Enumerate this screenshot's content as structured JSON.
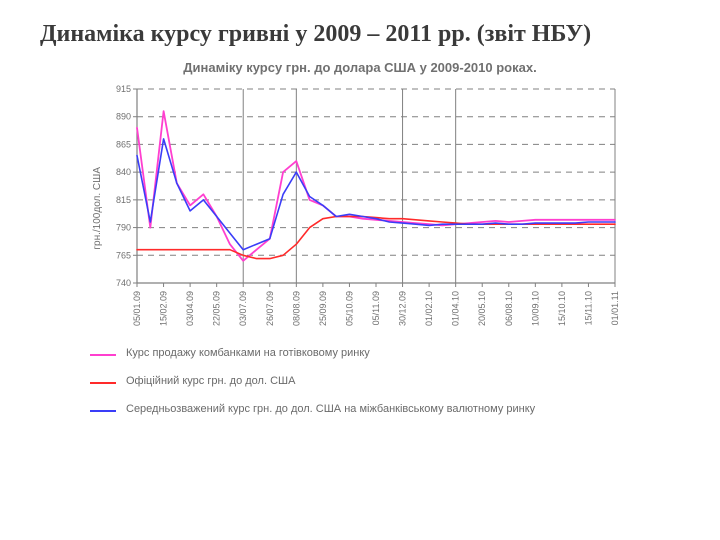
{
  "slide": {
    "title": "Динаміка курсу гривні у 2009 – 2011 рр. (звіт НБУ)"
  },
  "chart": {
    "type": "line",
    "title": "Динаміку курсу грн. до долара США у 2009-2010 роках.",
    "ylabel": "грн./100дол. США",
    "ylim": [
      740,
      915
    ],
    "ytick_step": 25,
    "yticks": [
      740,
      765,
      790,
      815,
      840,
      865,
      890,
      915
    ],
    "x_categories": [
      "05/01.09",
      "15/02.09",
      "03/04.09",
      "22/05.09",
      "03/07.09",
      "26/07.09",
      "08/08.09",
      "25/09.09",
      "05/10.09",
      "05/11.09",
      "30/12.09",
      "01/02.10",
      "01/04.10",
      "20/05.10",
      "06/08.10",
      "10/09.10",
      "15/10.10",
      "15/11.10",
      "01/01.11"
    ],
    "xgrid_indices": [
      0,
      4,
      6,
      10,
      12,
      18
    ],
    "background_color": "#ffffff",
    "grid_color": "#808080",
    "axis_color": "#808080",
    "tick_fontsize": 9,
    "title_fontsize": 13,
    "series": [
      {
        "name": "Курс продажу комбанками на готівковому ринку",
        "color": "#ff3fcf",
        "line_width": 1.8,
        "values": [
          880,
          790,
          895,
          830,
          810,
          820,
          800,
          775,
          760,
          770,
          780,
          840,
          850,
          815,
          810,
          800,
          800,
          798,
          797,
          796,
          795,
          794,
          793,
          792,
          793,
          794,
          795,
          796,
          795,
          796,
          797,
          797,
          797,
          797,
          797,
          797,
          797
        ]
      },
      {
        "name": "Офіційний курс грн. до дол. США",
        "color": "#ff2a2a",
        "line_width": 1.6,
        "values": [
          770,
          770,
          770,
          770,
          770,
          770,
          770,
          770,
          765,
          762,
          762,
          765,
          775,
          790,
          798,
          800,
          800,
          800,
          799,
          798,
          798,
          797,
          796,
          795,
          794,
          793,
          793,
          793,
          793,
          793,
          793,
          793,
          793,
          793,
          793,
          793,
          793
        ]
      },
      {
        "name": "Середньозважений курс грн. до дол. США на міжбанківському валютному ринку",
        "color": "#3a3df8",
        "line_width": 1.6,
        "values": [
          855,
          795,
          870,
          830,
          805,
          815,
          800,
          785,
          770,
          775,
          780,
          820,
          840,
          818,
          810,
          800,
          802,
          800,
          798,
          795,
          794,
          793,
          792,
          793,
          793,
          793,
          793,
          794,
          793,
          793,
          794,
          794,
          794,
          794,
          795,
          795,
          795
        ]
      }
    ]
  },
  "legend": {
    "items": [
      {
        "color": "#ff3fcf",
        "label": "Курс продажу комбанками на готівковому ринку"
      },
      {
        "color": "#ff2a2a",
        "label": "Офіційний курс грн. до дол. США"
      },
      {
        "color": "#3a3df8",
        "label": "Середньозважений курс грн. до дол. США на міжбанківському валютному ринку"
      }
    ]
  }
}
